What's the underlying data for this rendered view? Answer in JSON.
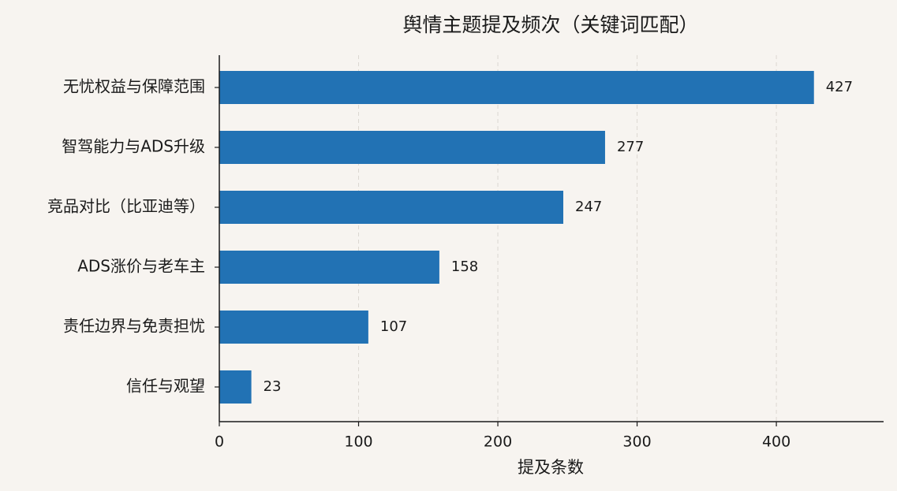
{
  "chart_data": {
    "type": "barh",
    "title": "舆情主题提及频次（关键词匹配）",
    "xlabel": "提及条数",
    "categories": [
      "无忧权益与保障范围",
      "智驾能力与ADS升级",
      "竞品对比（比亚迪等）",
      "ADS涨价与老车主",
      "责任边界与免责担忧",
      "信任与观望"
    ],
    "values": [
      427,
      277,
      247,
      158,
      107,
      23
    ],
    "color": "#2272b4",
    "xlim": [
      0,
      477
    ],
    "xticks": [
      0,
      100,
      200,
      300,
      400
    ],
    "grid": true
  }
}
